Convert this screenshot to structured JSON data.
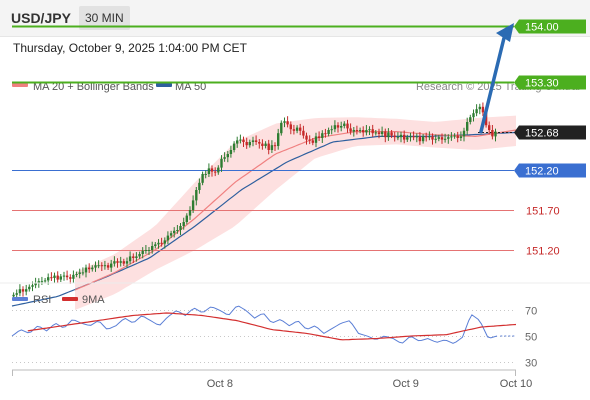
{
  "header": {
    "pair": "USD/JPY",
    "timeframe": "30 MIN"
  },
  "datetime": "Thursday, October 9, 2025 1:04:00 PM CET",
  "legend": [
    {
      "label": "MA 20 + Bollinger Bands",
      "color": "#f08080"
    },
    {
      "label": "MA 50",
      "color": "#2e5f9e"
    }
  ],
  "watermark": "Research © 2025 Trading Central",
  "colors": {
    "up": "#2e7d32",
    "down": "#c62828",
    "resistance": "#4caf1f",
    "support": "#3a6fd1",
    "minor": "#e57373",
    "band": "#fde0e0",
    "arrow": "#2b6bb3",
    "current": "#222222"
  },
  "chart_data": [
    {
      "type": "candlestick",
      "ylim": [
        150.95,
        154.1
      ],
      "x_ticks": [
        {
          "label": "Oct 8",
          "index": 66
        },
        {
          "label": "Oct 9",
          "index": 125
        },
        {
          "label": "Oct 10",
          "index": 160
        }
      ],
      "candle_count": 154,
      "close": [
        150.64,
        150.66,
        150.71,
        150.68,
        150.71,
        150.74,
        150.76,
        150.79,
        150.81,
        150.81,
        150.82,
        150.86,
        150.85,
        150.88,
        150.83,
        150.87,
        150.88,
        150.86,
        150.84,
        150.89,
        150.9,
        150.92,
        150.92,
        150.98,
        150.96,
        150.98,
        151.01,
        151.01,
        151.0,
        151.01,
        150.98,
        151.03,
        151.06,
        151.04,
        151.06,
        151.03,
        151.06,
        151.12,
        151.1,
        151.12,
        151.15,
        151.19,
        151.2,
        151.2,
        151.25,
        151.27,
        151.29,
        151.28,
        151.32,
        151.38,
        151.41,
        151.44,
        151.45,
        151.5,
        151.55,
        151.63,
        151.7,
        151.82,
        151.95,
        152.04,
        152.15,
        152.15,
        152.22,
        152.18,
        152.17,
        152.23,
        152.34,
        152.36,
        152.4,
        152.45,
        152.53,
        152.57,
        152.58,
        152.55,
        152.51,
        152.55,
        152.57,
        152.55,
        152.53,
        152.5,
        152.53,
        152.45,
        152.51,
        152.5,
        152.66,
        152.79,
        152.81,
        152.77,
        152.71,
        152.69,
        152.73,
        152.69,
        152.63,
        152.58,
        152.57,
        152.54,
        152.62,
        152.6,
        152.66,
        152.65,
        152.7,
        152.71,
        152.76,
        152.73,
        152.75,
        152.78,
        152.72,
        152.68,
        152.7,
        152.69,
        152.7,
        152.67,
        152.7,
        152.71,
        152.66,
        152.67,
        152.65,
        152.68,
        152.61,
        152.67,
        152.63,
        152.61,
        152.61,
        152.64,
        152.58,
        152.61,
        152.62,
        152.61,
        152.62,
        152.56,
        152.62,
        152.61,
        152.62,
        152.58,
        152.59,
        152.61,
        152.58,
        152.59,
        152.61,
        152.62,
        152.63,
        152.6,
        152.62,
        152.69,
        152.8,
        152.86,
        152.91,
        152.96,
        152.99,
        152.92,
        152.76,
        152.7,
        152.62,
        152.68
      ],
      "ma20": {
        "start": 20,
        "end": 160,
        "values": [
          150.7,
          150.92,
          151.2,
          151.6,
          152.05,
          152.4,
          152.6,
          152.68,
          152.68,
          152.64,
          152.62,
          152.7
        ]
      },
      "ma50": {
        "start": 0,
        "end": 160,
        "values": [
          150.5,
          150.62,
          150.85,
          151.1,
          151.5,
          151.95,
          152.3,
          152.55,
          152.62,
          152.62,
          152.64,
          152.67
        ]
      },
      "bb_upper": {
        "start": 20,
        "end": 160,
        "values": [
          150.92,
          151.15,
          151.5,
          152.05,
          152.55,
          152.78,
          152.85,
          152.86,
          152.84,
          152.8,
          152.85,
          152.88
        ]
      },
      "bb_lower": {
        "start": 20,
        "end": 160,
        "values": [
          150.45,
          150.65,
          150.95,
          151.2,
          151.5,
          151.95,
          152.35,
          152.5,
          152.52,
          152.48,
          152.45,
          152.5
        ]
      },
      "levels": [
        {
          "value": 154.0,
          "label": "154.00",
          "kind": "resistance"
        },
        {
          "value": 153.3,
          "label": "153.30",
          "kind": "resistance"
        },
        {
          "value": 152.68,
          "label": "152.68",
          "kind": "current"
        },
        {
          "value": 152.2,
          "label": "152.20",
          "kind": "support"
        },
        {
          "value": 151.7,
          "label": "151.70",
          "kind": "minor"
        },
        {
          "value": 151.2,
          "label": "151.20",
          "kind": "minor"
        }
      ],
      "forecast_arrow": {
        "from": 152.68,
        "to": 154.0
      }
    },
    {
      "type": "line",
      "legend": [
        {
          "label": "RSI",
          "color": "#5b7fd6"
        },
        {
          "label": "9MA",
          "color": "#d32f2f"
        }
      ],
      "ylim": [
        25,
        82
      ],
      "y_ticks": [
        70,
        50,
        30
      ],
      "rsi": {
        "start": 0,
        "end": 154,
        "values": [
          50,
          55,
          52,
          58,
          54,
          60,
          56,
          63,
          60,
          58,
          62,
          55,
          58,
          64,
          60,
          66,
          62,
          58,
          65,
          70,
          66,
          72,
          68,
          73,
          70,
          66,
          74,
          70,
          64,
          68,
          60,
          63,
          58,
          62,
          55,
          58,
          52,
          56,
          60,
          62,
          52,
          50,
          47,
          50,
          48,
          44,
          50,
          46,
          48,
          45,
          47,
          44,
          49,
          67,
          62,
          48,
          50
        ]
      },
      "ma9": {
        "start": 5,
        "end": 160,
        "values": [
          54,
          58,
          62,
          66,
          68,
          66,
          62,
          55,
          52,
          47,
          48,
          50,
          51,
          57,
          59
        ]
      },
      "rsi_tail": {
        "from": 155,
        "to": 160,
        "value": 50
      }
    }
  ]
}
